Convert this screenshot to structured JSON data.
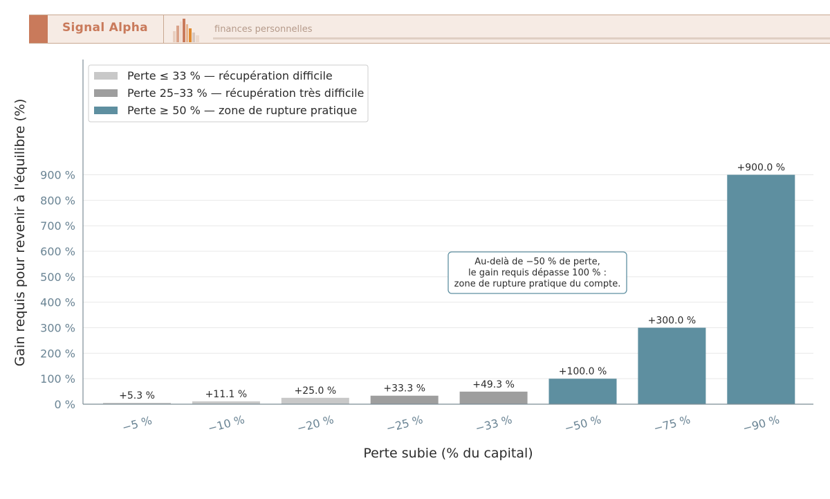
{
  "header": {
    "brand": "Signal Alpha",
    "tagline": "finances personnelles",
    "accent_color": "#c97a5b",
    "logo_icon": "bar-chart-logo-icon"
  },
  "chart_data": {
    "type": "bar",
    "xlabel": "Perte subie (% du capital)",
    "ylabel": "Gain requis pour revenir à l'équilibre (%)",
    "categories": [
      "−5 %",
      "−10 %",
      "−20 %",
      "−25 %",
      "−33 %",
      "−50 %",
      "−75 %",
      "−90 %"
    ],
    "values": [
      5.3,
      11.1,
      25.0,
      33.3,
      49.3,
      100.0,
      300.0,
      900.0
    ],
    "value_labels": [
      "+5.3 %",
      "+11.1 %",
      "+25.0 %",
      "+33.3 %",
      "+49.3 %",
      "+100.0 %",
      "+300.0 %",
      "+900.0 %"
    ],
    "bar_groups": [
      0,
      0,
      0,
      1,
      1,
      2,
      2,
      2
    ],
    "yticks": [
      0,
      100,
      200,
      300,
      400,
      500,
      600,
      700,
      800,
      900
    ],
    "ytick_labels": [
      "0 %",
      "100 %",
      "200 %",
      "300 %",
      "400 %",
      "500 %",
      "600 %",
      "700 %",
      "800 %",
      "900 %"
    ],
    "ylim": [
      0,
      1350
    ],
    "grid": "horizontal",
    "legend_position": "top-left",
    "legend": [
      {
        "label": "Perte ≤ 33 % — récupération difficile",
        "color": "#c8c8c8"
      },
      {
        "label": "Perte 25–33 % — récupération très difficile",
        "color": "#9e9e9e"
      },
      {
        "label": "Perte ≥ 50 % — zone de rupture pratique",
        "color": "#5e8fa0"
      }
    ],
    "annotation": {
      "lines": [
        "Au-delà de −50 % de perte,",
        "le gain requis dépasse 100 % :",
        "zone de rupture pratique du compte."
      ],
      "anchor_category": 5,
      "anchor_value": 480
    }
  }
}
